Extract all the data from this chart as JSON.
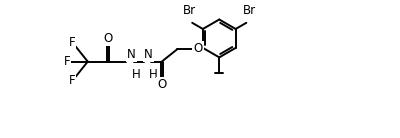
{
  "bg_color": "#ffffff",
  "line_color": "#000000",
  "line_width": 1.4,
  "font_size": 8.5,
  "xlim": [
    0,
    10
  ],
  "ylim": [
    -1.8,
    3.2
  ],
  "figsize": [
    4.0,
    1.38
  ],
  "dpi": 100
}
